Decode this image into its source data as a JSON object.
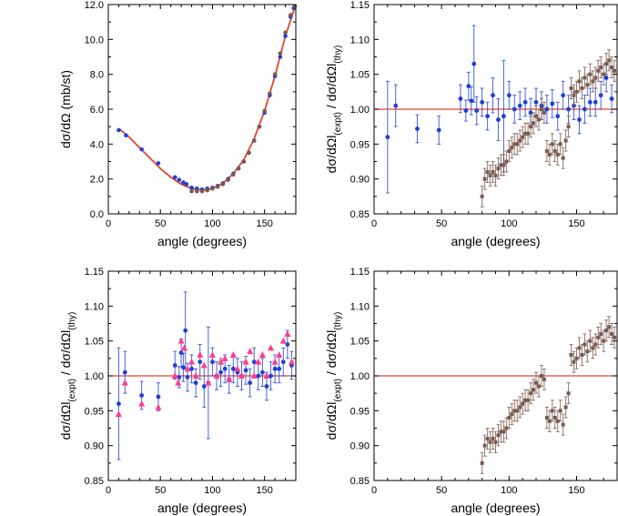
{
  "chart_data": [
    {
      "type": "scatter",
      "title": "",
      "xlabel": "angle (degrees)",
      "ylabel": "dσ/dΩ (mb/st)",
      "xlim": [
        0,
        180
      ],
      "ylim": [
        0,
        12
      ],
      "xticks": [
        0,
        50,
        100,
        150
      ],
      "yticks": [
        0.0,
        2.0,
        4.0,
        6.0,
        8.0,
        10.0,
        12.0
      ],
      "yticks_labels": [
        "0.0",
        "2.0",
        "4.0",
        "6.0",
        "8.0",
        "10.0",
        "12.0"
      ],
      "series": [
        {
          "kind": "line",
          "color": "#e8442a",
          "x": [
            10,
            20,
            30,
            40,
            50,
            60,
            70,
            80,
            90,
            100,
            110,
            120,
            130,
            140,
            150,
            160,
            170,
            180
          ],
          "y": [
            4.9,
            4.4,
            3.8,
            3.2,
            2.6,
            2.1,
            1.7,
            1.45,
            1.35,
            1.45,
            1.75,
            2.3,
            3.1,
            4.3,
            5.9,
            7.9,
            10.2,
            12.0
          ]
        },
        {
          "kind": "points",
          "color": "#1f3fd6",
          "x": [
            10,
            17,
            32,
            48,
            64,
            68,
            72,
            75,
            80,
            85,
            90,
            95,
            100,
            105,
            110,
            115,
            120,
            125,
            130,
            135,
            140,
            145,
            150,
            155,
            160,
            165,
            170,
            175,
            178
          ],
          "y": [
            4.8,
            4.5,
            3.7,
            2.9,
            2.1,
            1.95,
            1.8,
            1.7,
            1.5,
            1.45,
            1.4,
            1.45,
            1.5,
            1.6,
            1.75,
            2.0,
            2.3,
            2.6,
            3.0,
            3.5,
            4.2,
            5.0,
            5.8,
            6.8,
            7.9,
            9.0,
            10.2,
            11.3,
            11.8
          ]
        },
        {
          "kind": "points",
          "color": "#7a5a4f",
          "x": [
            80,
            85,
            90,
            95,
            100,
            105,
            110,
            115,
            120,
            125,
            130,
            135,
            140,
            145,
            150,
            155,
            160,
            165,
            170,
            175,
            179
          ],
          "y": [
            1.3,
            1.3,
            1.3,
            1.35,
            1.45,
            1.55,
            1.7,
            1.95,
            2.25,
            2.6,
            3.0,
            3.5,
            4.2,
            5.0,
            5.9,
            6.9,
            8.0,
            9.2,
            10.4,
            11.4,
            11.9
          ]
        }
      ]
    },
    {
      "type": "scatter",
      "title": "",
      "xlabel": "angle (degrees)",
      "ylabel_main": "dσ/dΩl",
      "ylabel_sub1": "(expt)",
      "ylabel_mid": " / dσ/dΩl",
      "ylabel_sub2": "(thy)",
      "xlim": [
        0,
        180
      ],
      "ylim": [
        0.85,
        1.15
      ],
      "xticks": [
        0,
        50,
        100,
        150
      ],
      "yticks": [
        0.85,
        0.9,
        0.95,
        1.0,
        1.05,
        1.1,
        1.15
      ],
      "yticks_labels": [
        "0.85",
        "0.90",
        "0.95",
        "1.00",
        "1.05",
        "1.10",
        "1.15"
      ],
      "refline": 1.0,
      "series": [
        {
          "kind": "errpoints",
          "color": "#1f3fd6",
          "x": [
            10,
            16,
            32,
            48,
            64,
            68,
            70,
            72,
            74,
            76,
            80,
            84,
            88,
            92,
            96,
            100,
            104,
            108,
            112,
            116,
            120,
            124,
            128,
            132,
            136,
            140,
            144,
            148,
            152,
            156,
            160,
            164,
            168,
            172,
            176
          ],
          "y": [
            0.96,
            1.005,
            0.972,
            0.97,
            1.015,
            0.998,
            1.033,
            1.012,
            1.065,
            0.998,
            1.01,
            0.99,
            1.02,
            0.985,
            0.99,
            1.02,
            1.0,
            1.005,
            1.01,
            0.995,
            1.01,
            1.005,
            1.0,
            1.008,
            0.99,
            1.02,
            1.0,
            1.005,
            0.985,
            1.0,
            1.01,
            1.01,
            1.02,
            1.045,
            1.015
          ],
          "err": [
            0.08,
            0.03,
            0.02,
            0.02,
            0.02,
            0.015,
            0.02,
            0.02,
            0.055,
            0.02,
            0.02,
            0.02,
            0.025,
            0.03,
            0.08,
            0.02,
            0.02,
            0.02,
            0.02,
            0.02,
            0.02,
            0.02,
            0.02,
            0.02,
            0.02,
            0.02,
            0.02,
            0.02,
            0.02,
            0.02,
            0.02,
            0.02,
            0.02,
            0.02,
            0.02
          ]
        },
        {
          "kind": "errpoints",
          "color": "#7a5a4f",
          "x": [
            80,
            82,
            84,
            86,
            88,
            90,
            92,
            94,
            96,
            98,
            100,
            102,
            104,
            106,
            108,
            110,
            112,
            114,
            116,
            118,
            120,
            122,
            124,
            126,
            128,
            130,
            132,
            134,
            136,
            138,
            140,
            142,
            144,
            146,
            148,
            150,
            152,
            154,
            156,
            158,
            160,
            162,
            164,
            166,
            168,
            170,
            172,
            174,
            176,
            178
          ],
          "y": [
            0.875,
            0.9,
            0.91,
            0.905,
            0.91,
            0.905,
            0.915,
            0.92,
            0.92,
            0.925,
            0.94,
            0.945,
            0.95,
            0.95,
            0.955,
            0.96,
            0.965,
            0.965,
            0.975,
            0.98,
            0.99,
            0.985,
            1.0,
            0.995,
            0.94,
            0.935,
            0.95,
            0.94,
            0.935,
            0.95,
            0.93,
            0.955,
            0.975,
            1.03,
            1.02,
            1.025,
            1.04,
            1.03,
            1.045,
            1.035,
            1.05,
            1.04,
            1.045,
            1.055,
            1.06,
            1.05,
            1.065,
            1.07,
            1.06,
            1.055
          ],
          "err": [
            0.015,
            0.015,
            0.015,
            0.015,
            0.015,
            0.015,
            0.015,
            0.015,
            0.015,
            0.015,
            0.015,
            0.015,
            0.015,
            0.015,
            0.015,
            0.015,
            0.015,
            0.015,
            0.015,
            0.015,
            0.015,
            0.015,
            0.015,
            0.015,
            0.015,
            0.015,
            0.015,
            0.015,
            0.015,
            0.015,
            0.015,
            0.015,
            0.015,
            0.015,
            0.015,
            0.015,
            0.015,
            0.015,
            0.015,
            0.015,
            0.015,
            0.015,
            0.015,
            0.015,
            0.015,
            0.015,
            0.015,
            0.015,
            0.015,
            0.015
          ]
        }
      ]
    },
    {
      "type": "scatter",
      "title": "",
      "xlabel": "angle (degrees)",
      "ylabel_main": "dσ/dΩl",
      "ylabel_sub1": "(expt)",
      "ylabel_mid": " / dσ/dΩl",
      "ylabel_sub2": "(thy)",
      "xlim": [
        0,
        180
      ],
      "ylim": [
        0.85,
        1.15
      ],
      "xticks": [
        0,
        50,
        100,
        150
      ],
      "yticks": [
        0.85,
        0.9,
        0.95,
        1.0,
        1.05,
        1.1,
        1.15
      ],
      "yticks_labels": [
        "0.85",
        "0.90",
        "0.95",
        "1.00",
        "1.05",
        "1.10",
        "1.15"
      ],
      "refline": 1.0,
      "series": [
        {
          "kind": "errpoints",
          "color": "#1f3fd6",
          "x": [
            10,
            16,
            32,
            48,
            64,
            68,
            70,
            72,
            74,
            76,
            80,
            84,
            88,
            92,
            96,
            100,
            104,
            108,
            112,
            116,
            120,
            124,
            128,
            132,
            136,
            140,
            144,
            148,
            152,
            156,
            160,
            164,
            168,
            172,
            176
          ],
          "y": [
            0.96,
            1.005,
            0.972,
            0.97,
            1.015,
            0.998,
            1.033,
            1.012,
            1.065,
            0.998,
            1.01,
            0.99,
            1.02,
            0.985,
            0.99,
            1.02,
            1.0,
            1.005,
            1.01,
            0.995,
            1.01,
            1.005,
            1.0,
            1.008,
            0.99,
            1.02,
            1.0,
            1.005,
            0.985,
            1.0,
            1.01,
            1.01,
            1.02,
            1.045,
            1.015
          ],
          "err": [
            0.08,
            0.03,
            0.02,
            0.02,
            0.02,
            0.015,
            0.02,
            0.02,
            0.055,
            0.02,
            0.02,
            0.02,
            0.025,
            0.03,
            0.08,
            0.02,
            0.02,
            0.02,
            0.02,
            0.02,
            0.02,
            0.02,
            0.02,
            0.02,
            0.02,
            0.02,
            0.02,
            0.02,
            0.02,
            0.02,
            0.02,
            0.02,
            0.02,
            0.02,
            0.02
          ]
        },
        {
          "kind": "triangles",
          "color": "#ff3d8b",
          "x": [
            10,
            16,
            32,
            48,
            64,
            67,
            70,
            73,
            76,
            80,
            84,
            88,
            92,
            96,
            100,
            104,
            108,
            112,
            116,
            120,
            124,
            128,
            132,
            136,
            140,
            144,
            148,
            152,
            156,
            160,
            164,
            168,
            172,
            176
          ],
          "y": [
            0.945,
            0.99,
            0.96,
            0.955,
            1.0,
            0.99,
            1.05,
            1.04,
            1.01,
            1.02,
            1.0,
            1.03,
            1.015,
            0.99,
            1.03,
            1.0,
            1.02,
            1.025,
            0.995,
            1.03,
            1.01,
            1.0,
            1.02,
            1.035,
            1.0,
            1.02,
            1.03,
            1.0,
            1.04,
            1.02,
            1.03,
            1.05,
            1.06,
            1.02
          ]
        }
      ]
    },
    {
      "type": "scatter",
      "title": "",
      "xlabel": "angle (degrees)",
      "ylabel_main": "dσ/dΩl",
      "ylabel_sub1": "(expt)",
      "ylabel_mid": " / dσ/dΩl",
      "ylabel_sub2": "(thy)",
      "xlim": [
        0,
        180
      ],
      "ylim": [
        0.85,
        1.15
      ],
      "xticks": [
        0,
        50,
        100,
        150
      ],
      "yticks": [
        0.85,
        0.9,
        0.95,
        1.0,
        1.05,
        1.1,
        1.15
      ],
      "yticks_labels": [
        "0.85",
        "0.90",
        "0.95",
        "1.00",
        "1.05",
        "1.10",
        "1.15"
      ],
      "refline": 1.0,
      "series": [
        {
          "kind": "errpoints",
          "color": "#7a5a4f",
          "x": [
            80,
            82,
            84,
            86,
            88,
            90,
            92,
            94,
            96,
            98,
            100,
            102,
            104,
            106,
            108,
            110,
            112,
            114,
            116,
            118,
            120,
            122,
            124,
            126,
            128,
            130,
            132,
            134,
            136,
            138,
            140,
            142,
            144,
            146,
            148,
            150,
            152,
            154,
            156,
            158,
            160,
            162,
            164,
            166,
            168,
            170,
            172,
            174,
            176,
            178
          ],
          "y": [
            0.875,
            0.9,
            0.91,
            0.905,
            0.91,
            0.905,
            0.915,
            0.92,
            0.92,
            0.925,
            0.94,
            0.945,
            0.95,
            0.95,
            0.955,
            0.96,
            0.965,
            0.965,
            0.975,
            0.98,
            0.99,
            0.985,
            1.0,
            0.995,
            0.94,
            0.935,
            0.95,
            0.94,
            0.935,
            0.95,
            0.93,
            0.955,
            0.975,
            1.03,
            1.02,
            1.025,
            1.04,
            1.03,
            1.045,
            1.035,
            1.05,
            1.04,
            1.045,
            1.055,
            1.06,
            1.05,
            1.065,
            1.07,
            1.06,
            1.055
          ],
          "err": [
            0.015,
            0.015,
            0.015,
            0.015,
            0.015,
            0.015,
            0.015,
            0.015,
            0.015,
            0.015,
            0.015,
            0.015,
            0.015,
            0.015,
            0.015,
            0.015,
            0.015,
            0.015,
            0.015,
            0.015,
            0.015,
            0.015,
            0.015,
            0.015,
            0.015,
            0.015,
            0.015,
            0.015,
            0.015,
            0.015,
            0.015,
            0.015,
            0.015,
            0.015,
            0.015,
            0.015,
            0.015,
            0.015,
            0.015,
            0.015,
            0.015,
            0.015,
            0.015,
            0.015,
            0.015,
            0.015,
            0.015,
            0.015,
            0.015,
            0.015
          ]
        }
      ]
    }
  ],
  "colors": {
    "fit_line": "#e8442a",
    "ref_line": "#e8442a",
    "blue": "#1f3fd6",
    "brown": "#7a5a4f",
    "pink": "#ff3d8b"
  }
}
